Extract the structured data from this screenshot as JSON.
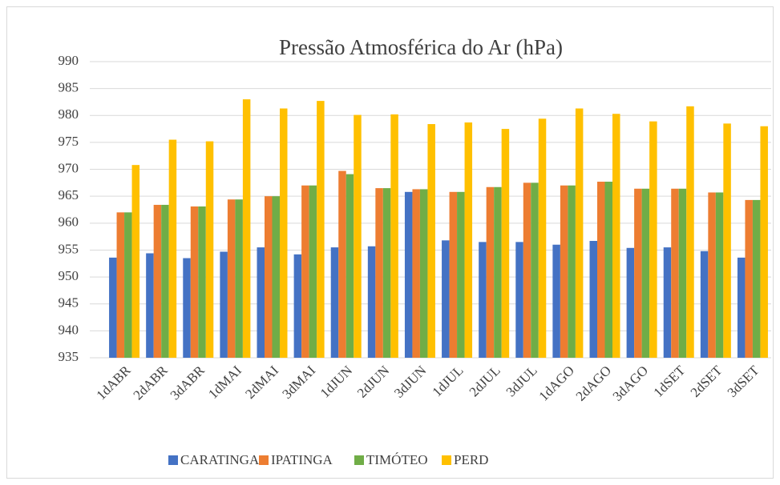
{
  "chart_data": {
    "type": "bar",
    "title": "Pressão Atmosférica do Ar (hPa)",
    "categories": [
      "1dABR",
      "2dABR",
      "3dABR",
      "1dMAI",
      "2dMAI",
      "3dMAI",
      "1dJUN",
      "2dJUN",
      "3dJUN",
      "1dJUL",
      "2dJUL",
      "3dJUL",
      "1dAGO",
      "2dAGO",
      "3dAGO",
      "1dSET",
      "2dSET",
      "3dSET"
    ],
    "series": [
      {
        "name": "CARATINGA",
        "color": "#4472c4",
        "values": [
          953.6,
          954.4,
          953.5,
          954.7,
          955.5,
          954.2,
          955.5,
          955.7,
          965.8,
          956.8,
          956.5,
          956.5,
          956.0,
          956.7,
          955.4,
          955.5,
          954.8,
          953.6
        ]
      },
      {
        "name": "IPATINGA",
        "color": "#ed7d31",
        "values": [
          962.0,
          963.4,
          963.1,
          964.4,
          965.0,
          967.0,
          969.7,
          966.5,
          966.3,
          965.8,
          966.7,
          967.5,
          967.0,
          967.7,
          966.4,
          966.4,
          965.7,
          964.3
        ]
      },
      {
        "name": "TIMÓTEO",
        "color": "#70ad47",
        "values": [
          962.0,
          963.4,
          963.1,
          964.4,
          965.0,
          967.0,
          969.1,
          966.5,
          966.3,
          965.8,
          966.7,
          967.5,
          967.0,
          967.7,
          966.4,
          966.4,
          965.7,
          964.3
        ]
      },
      {
        "name": "PERD",
        "color": "#ffc000",
        "values": [
          970.8,
          975.5,
          975.2,
          983.0,
          981.3,
          982.7,
          980.1,
          980.2,
          978.4,
          978.7,
          977.5,
          979.4,
          981.3,
          980.3,
          978.9,
          981.7,
          978.5,
          978.0
        ]
      }
    ],
    "ylim": [
      935,
      990
    ],
    "yticks": [
      935,
      940,
      945,
      950,
      955,
      960,
      965,
      970,
      975,
      980,
      985,
      990
    ],
    "grid": true,
    "legend": "bottom"
  }
}
